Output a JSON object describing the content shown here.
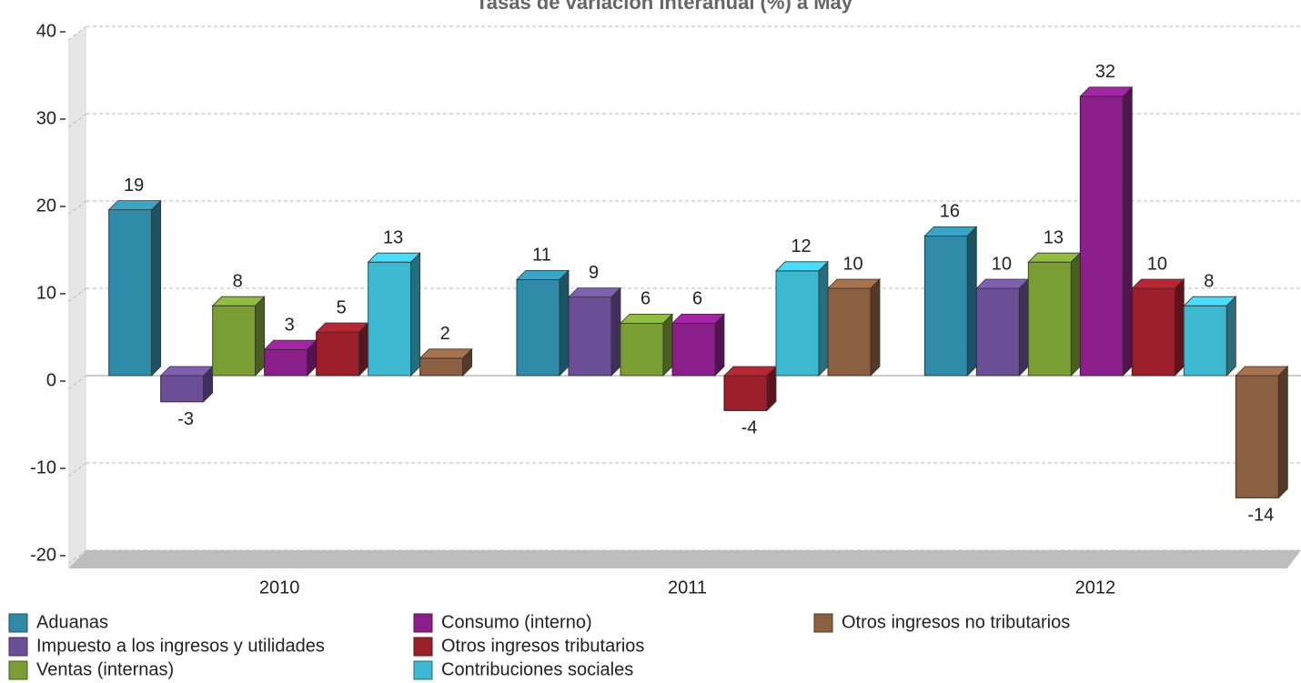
{
  "chart_data": {
    "type": "bar",
    "title": "Tasas de variación interanual (%) a May",
    "categories": [
      "2010",
      "2011",
      "2012"
    ],
    "series": [
      {
        "name": "Aduanas",
        "color": "#2e8aa6",
        "values": [
          19,
          11,
          16
        ]
      },
      {
        "name": "Impuesto a los ingresos y utilidades",
        "color": "#6a4f96",
        "values": [
          -3,
          9,
          10
        ]
      },
      {
        "name": "Ventas (internas)",
        "color": "#7a9e34",
        "values": [
          8,
          6,
          13
        ]
      },
      {
        "name": "Consumo (interno)",
        "color": "#8a1f8a",
        "values": [
          3,
          6,
          32
        ]
      },
      {
        "name": "Otros ingresos tributarios",
        "color": "#9b1f2a",
        "values": [
          5,
          -4,
          10
        ]
      },
      {
        "name": "Contribuciones sociales",
        "color": "#3cb8d0",
        "values": [
          13,
          12,
          8
        ]
      },
      {
        "name": "Otros ingresos no tributarios",
        "color": "#8a6040",
        "values": [
          2,
          10,
          -14
        ]
      }
    ],
    "ylim": [
      -20,
      40
    ],
    "yticks": [
      -20,
      -10,
      0,
      10,
      20,
      30,
      40
    ],
    "grid": true
  }
}
